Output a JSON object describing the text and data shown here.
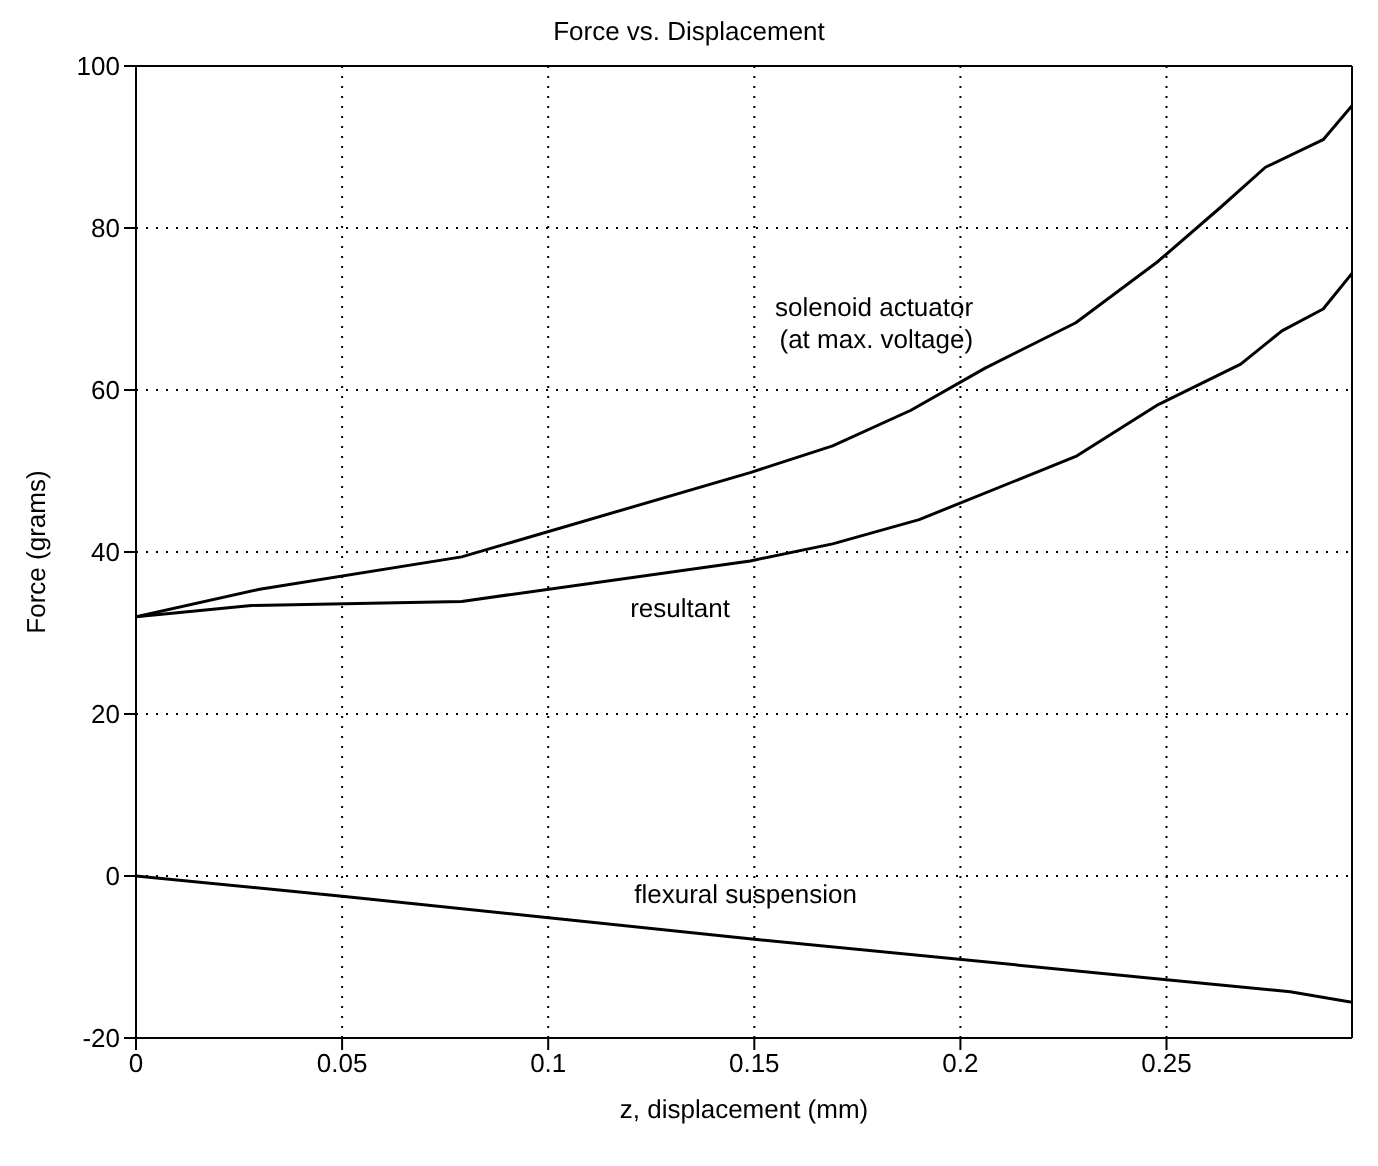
{
  "chart_data": {
    "type": "line",
    "title": "Force vs. Displacement",
    "xlabel": "z, displacement (mm)",
    "ylabel": "Force (grams)",
    "xlim": [
      0,
      0.295
    ],
    "xticks": [
      0,
      0.05,
      0.1,
      0.15,
      0.2,
      0.25
    ],
    "ylim": [
      -20,
      100
    ],
    "yticks": [
      -20,
      0,
      20,
      40,
      60,
      80,
      100
    ],
    "grid": true,
    "line_style": "solid",
    "marker": "none",
    "series": [
      {
        "name": "solenoid actuator\n(at max. voltage)",
        "color": "#000000",
        "x": [
          0,
          0.03,
          0.079,
          0.149,
          0.169,
          0.188,
          0.206,
          0.228,
          0.248,
          0.263,
          0.274,
          0.288,
          0.295
        ],
        "values": [
          32,
          35.4,
          39.4,
          49.8,
          53.1,
          57.5,
          62.7,
          68.3,
          75.9,
          82.5,
          87.5,
          90.9,
          95.1
        ]
      },
      {
        "name": "resultant",
        "color": "#000000",
        "x": [
          0,
          0.028,
          0.079,
          0.149,
          0.169,
          0.19,
          0.228,
          0.248,
          0.268,
          0.278,
          0.288,
          0.295
        ],
        "values": [
          32,
          33.4,
          33.9,
          38.9,
          41,
          44,
          51.8,
          58.2,
          63.2,
          67.3,
          70,
          74.4
        ]
      },
      {
        "name": "flexural suspension",
        "color": "#000000",
        "x": [
          0,
          0.05,
          0.15,
          0.25,
          0.28,
          0.295
        ],
        "values": [
          0,
          -2.5,
          -7.8,
          -12.8,
          -14.3,
          -15.6
        ]
      }
    ]
  }
}
